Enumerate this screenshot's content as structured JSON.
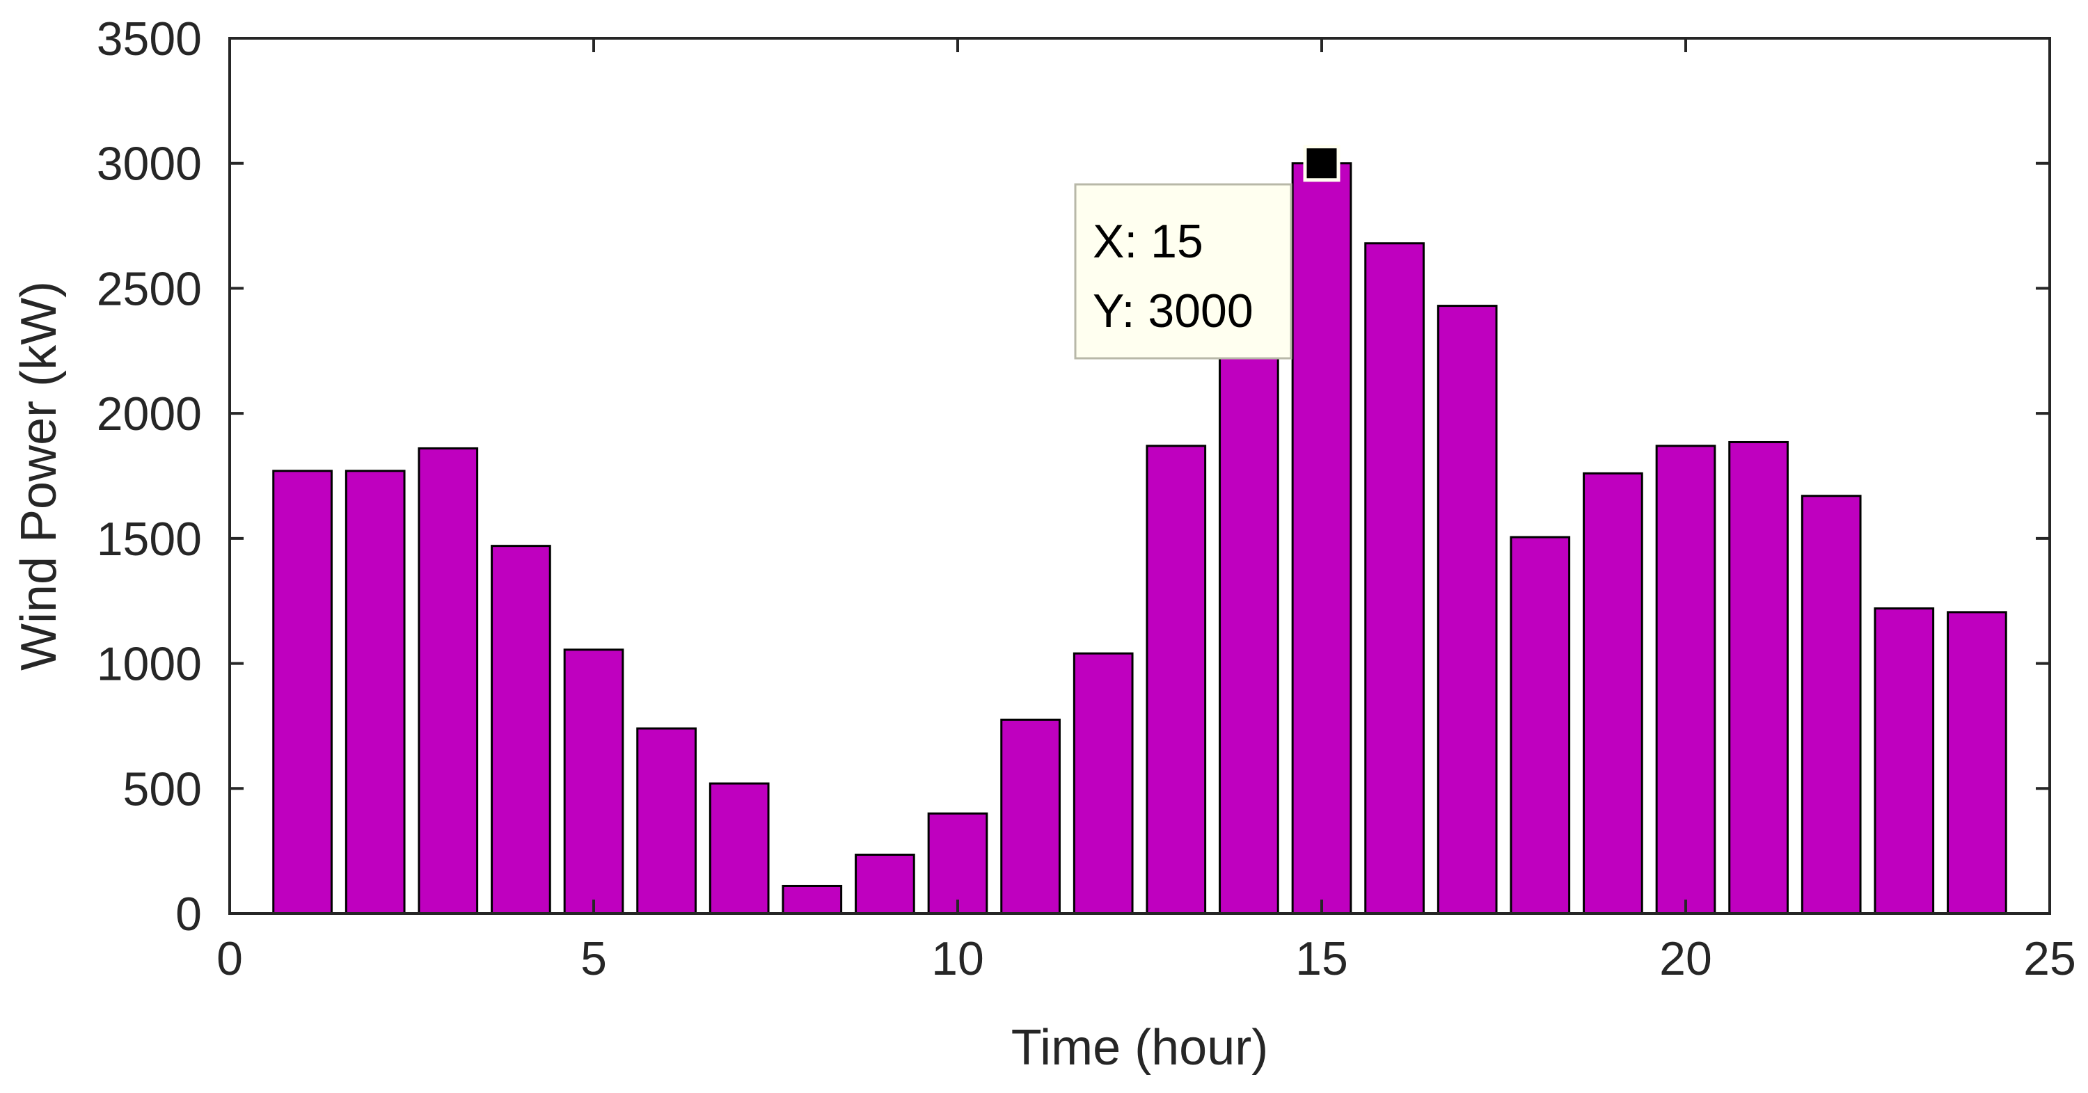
{
  "chart_data": {
    "type": "bar",
    "x": [
      1,
      2,
      3,
      4,
      5,
      6,
      7,
      8,
      9,
      10,
      11,
      12,
      13,
      14,
      15,
      16,
      17,
      18,
      19,
      20,
      21,
      22,
      23,
      24
    ],
    "values": [
      1770,
      1770,
      1860,
      1470,
      1055,
      740,
      520,
      110,
      235,
      400,
      775,
      1040,
      1870,
      2300,
      3000,
      2680,
      2430,
      1505,
      1760,
      1870,
      1885,
      1670,
      1220,
      1205
    ],
    "bar_color": "#BF00BF",
    "xlabel": "Time (hour)",
    "ylabel": "Wind Power (kW)",
    "xlim": [
      0,
      25
    ],
    "ylim": [
      0,
      3500
    ],
    "xticks": [
      0,
      5,
      10,
      15,
      20,
      25
    ],
    "yticks": [
      0,
      500,
      1000,
      1500,
      2000,
      2500,
      3000,
      3500
    ],
    "grid": false,
    "datatip": {
      "x": 15,
      "y": 3000,
      "x_text": "X: 15",
      "y_text": "Y: 3000",
      "background": "#FFFFF0"
    }
  }
}
